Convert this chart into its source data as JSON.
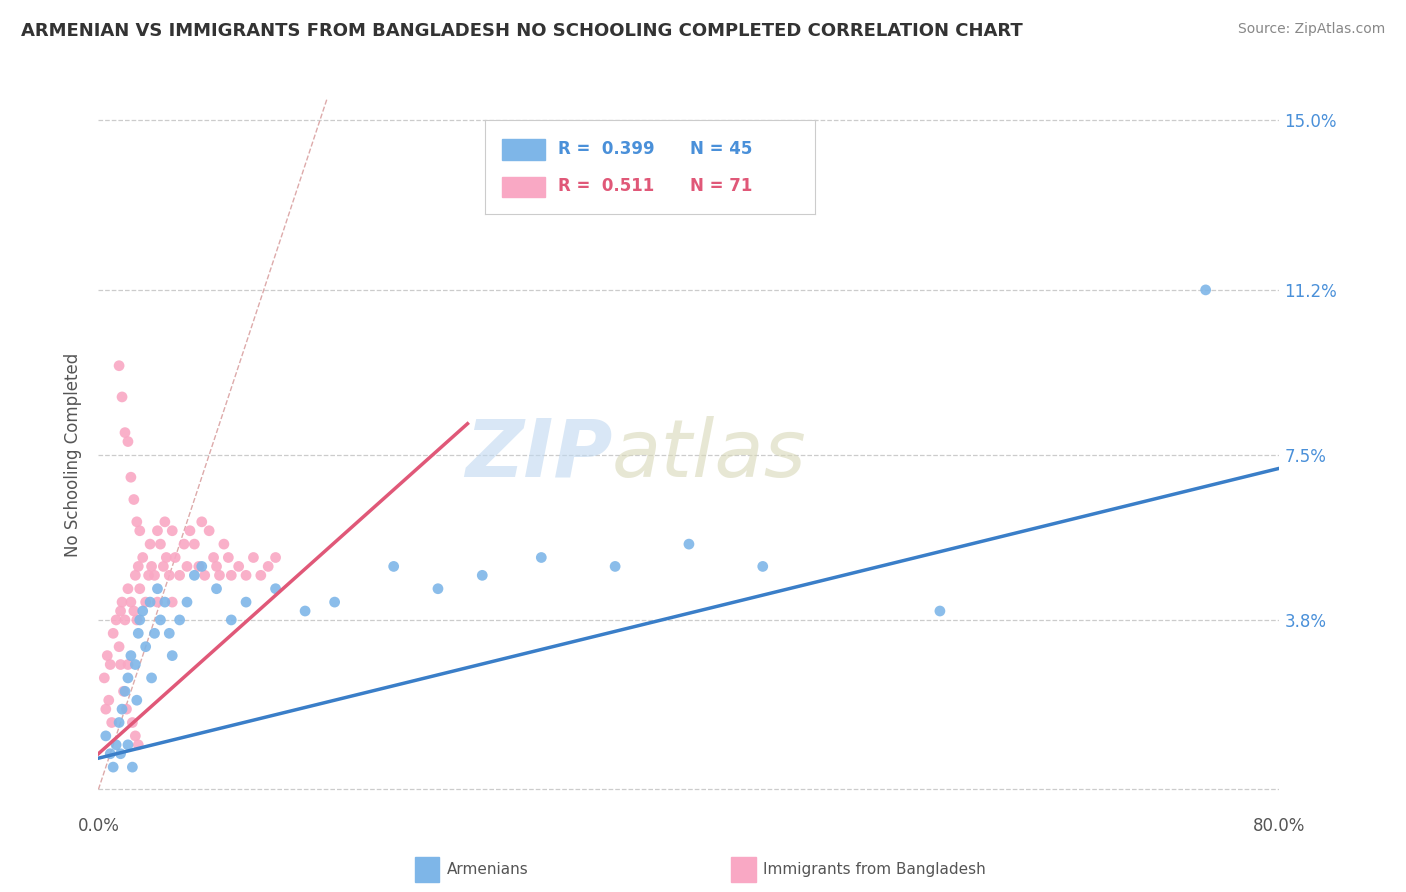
{
  "title": "ARMENIAN VS IMMIGRANTS FROM BANGLADESH NO SCHOOLING COMPLETED CORRELATION CHART",
  "source_text": "Source: ZipAtlas.com",
  "ylabel": "No Schooling Completed",
  "xlim": [
    0.0,
    0.8
  ],
  "ylim": [
    -0.005,
    0.155
  ],
  "yticks": [
    0.0,
    0.038,
    0.075,
    0.112,
    0.15
  ],
  "ytick_labels": [
    "",
    "3.8%",
    "7.5%",
    "11.2%",
    "15.0%"
  ],
  "xtick_labels": [
    "0.0%",
    "",
    "",
    "",
    "",
    "",
    "",
    "",
    "80.0%"
  ],
  "grid_color": "#cccccc",
  "background_color": "#ffffff",
  "armenian_color": "#7EB6E8",
  "bangladesh_color": "#F9A8C4",
  "armenian_line_color": "#3A7EC8",
  "bangladesh_line_color": "#E05878",
  "ref_line_color": "#ddaaaa",
  "legend_R_armenian": "0.399",
  "legend_N_armenian": "45",
  "legend_R_bangladesh": "0.511",
  "legend_N_bangladesh": "71",
  "arm_line_x": [
    0.0,
    0.8
  ],
  "arm_line_y": [
    0.007,
    0.072
  ],
  "ban_line_x": [
    0.0,
    0.25
  ],
  "ban_line_y": [
    0.008,
    0.082
  ],
  "ref_line_x": [
    0.0,
    0.155
  ],
  "ref_line_y": [
    0.0,
    0.155
  ],
  "arm_x": [
    0.005,
    0.008,
    0.01,
    0.012,
    0.014,
    0.015,
    0.016,
    0.018,
    0.02,
    0.02,
    0.022,
    0.023,
    0.025,
    0.026,
    0.027,
    0.028,
    0.03,
    0.032,
    0.035,
    0.036,
    0.038,
    0.04,
    0.042,
    0.045,
    0.048,
    0.05,
    0.055,
    0.06,
    0.065,
    0.07,
    0.08,
    0.09,
    0.1,
    0.12,
    0.14,
    0.16,
    0.2,
    0.23,
    0.26,
    0.3,
    0.35,
    0.4,
    0.45,
    0.57,
    0.75
  ],
  "arm_y": [
    0.012,
    0.008,
    0.005,
    0.01,
    0.015,
    0.008,
    0.018,
    0.022,
    0.025,
    0.01,
    0.03,
    0.005,
    0.028,
    0.02,
    0.035,
    0.038,
    0.04,
    0.032,
    0.042,
    0.025,
    0.035,
    0.045,
    0.038,
    0.042,
    0.035,
    0.03,
    0.038,
    0.042,
    0.048,
    0.05,
    0.045,
    0.038,
    0.042,
    0.045,
    0.04,
    0.042,
    0.05,
    0.045,
    0.048,
    0.052,
    0.05,
    0.055,
    0.05,
    0.04,
    0.112
  ],
  "ban_x": [
    0.004,
    0.006,
    0.008,
    0.01,
    0.012,
    0.014,
    0.015,
    0.016,
    0.018,
    0.02,
    0.02,
    0.022,
    0.024,
    0.025,
    0.026,
    0.027,
    0.028,
    0.03,
    0.032,
    0.034,
    0.035,
    0.036,
    0.038,
    0.04,
    0.04,
    0.042,
    0.044,
    0.045,
    0.046,
    0.048,
    0.05,
    0.05,
    0.052,
    0.055,
    0.058,
    0.06,
    0.062,
    0.065,
    0.068,
    0.07,
    0.072,
    0.075,
    0.078,
    0.08,
    0.082,
    0.085,
    0.088,
    0.09,
    0.095,
    0.1,
    0.105,
    0.11,
    0.115,
    0.12,
    0.014,
    0.016,
    0.018,
    0.02,
    0.022,
    0.024,
    0.026,
    0.028,
    0.005,
    0.007,
    0.009,
    0.015,
    0.017,
    0.019,
    0.023,
    0.025,
    0.027
  ],
  "ban_y": [
    0.025,
    0.03,
    0.028,
    0.035,
    0.038,
    0.032,
    0.04,
    0.042,
    0.038,
    0.045,
    0.028,
    0.042,
    0.04,
    0.048,
    0.038,
    0.05,
    0.045,
    0.052,
    0.042,
    0.048,
    0.055,
    0.05,
    0.048,
    0.058,
    0.042,
    0.055,
    0.05,
    0.06,
    0.052,
    0.048,
    0.058,
    0.042,
    0.052,
    0.048,
    0.055,
    0.05,
    0.058,
    0.055,
    0.05,
    0.06,
    0.048,
    0.058,
    0.052,
    0.05,
    0.048,
    0.055,
    0.052,
    0.048,
    0.05,
    0.048,
    0.052,
    0.048,
    0.05,
    0.052,
    0.095,
    0.088,
    0.08,
    0.078,
    0.07,
    0.065,
    0.06,
    0.058,
    0.018,
    0.02,
    0.015,
    0.028,
    0.022,
    0.018,
    0.015,
    0.012,
    0.01
  ]
}
